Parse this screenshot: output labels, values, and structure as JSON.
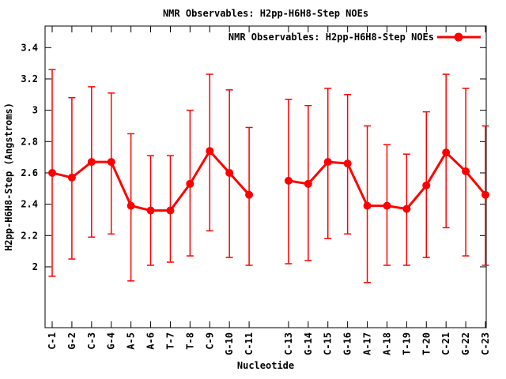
{
  "title": "NMR Observables: H2pp-H6H8-Step NOEs",
  "legend_label": "NMR Observables: H2pp-H6H8-Step NOEs",
  "xlabel": "Nucleotide",
  "ylabel": "H2pp-H6H8-Step (Angstroms)",
  "colors": {
    "series": "#ff0000",
    "axis": "#000000",
    "background": "#ffffff",
    "text": "#000000"
  },
  "chart_data": {
    "type": "line",
    "subtype": "points-with-error-bars",
    "title": "NMR Observables: H2pp-H6H8-Step NOEs",
    "xlabel": "Nucleotide",
    "ylabel": "H2pp-H6H8-Step (Angstroms)",
    "legend_entries": [
      "NMR Observables: H2pp-H6H8-Step NOEs"
    ],
    "legend_position": "top-right-inside",
    "grid": false,
    "ylim": [
      1.61,
      3.54
    ],
    "y_ticks": [
      {
        "value": 2.0,
        "label": "2"
      },
      {
        "value": 2.2,
        "label": "2.2"
      },
      {
        "value": 2.4,
        "label": "2.4"
      },
      {
        "value": 2.6,
        "label": "2.6"
      },
      {
        "value": 2.8,
        "label": "2.8"
      },
      {
        "value": 3.0,
        "label": "3"
      },
      {
        "value": 3.2,
        "label": "3.2"
      },
      {
        "value": 3.4,
        "label": "3.4"
      }
    ],
    "x_slot_range": [
      1,
      23
    ],
    "gap_slots": [
      12
    ],
    "series": [
      {
        "name": "NMR Observables: H2pp-H6H8-Step NOEs",
        "color": "#ff0000",
        "points": [
          {
            "slot": 1,
            "label": "C-1",
            "value": 2.6,
            "err_low": 1.94,
            "err_high": 3.26
          },
          {
            "slot": 2,
            "label": "G-2",
            "value": 2.57,
            "err_low": 2.05,
            "err_high": 3.08
          },
          {
            "slot": 3,
            "label": "C-3",
            "value": 2.67,
            "err_low": 2.19,
            "err_high": 3.15
          },
          {
            "slot": 4,
            "label": "G-4",
            "value": 2.67,
            "err_low": 2.21,
            "err_high": 3.11
          },
          {
            "slot": 5,
            "label": "A-5",
            "value": 2.39,
            "err_low": 1.91,
            "err_high": 2.85
          },
          {
            "slot": 6,
            "label": "A-6",
            "value": 2.36,
            "err_low": 2.01,
            "err_high": 2.71
          },
          {
            "slot": 7,
            "label": "T-7",
            "value": 2.36,
            "err_low": 2.03,
            "err_high": 2.71
          },
          {
            "slot": 8,
            "label": "T-8",
            "value": 2.53,
            "err_low": 2.07,
            "err_high": 3.0
          },
          {
            "slot": 9,
            "label": "C-9",
            "value": 2.74,
            "err_low": 2.23,
            "err_high": 3.23
          },
          {
            "slot": 10,
            "label": "G-10",
            "value": 2.6,
            "err_low": 2.06,
            "err_high": 3.13
          },
          {
            "slot": 11,
            "label": "C-11",
            "value": 2.46,
            "err_low": 2.01,
            "err_high": 2.89
          },
          {
            "slot": 13,
            "label": "C-13",
            "value": 2.55,
            "err_low": 2.02,
            "err_high": 3.07
          },
          {
            "slot": 14,
            "label": "G-14",
            "value": 2.53,
            "err_low": 2.04,
            "err_high": 3.03
          },
          {
            "slot": 15,
            "label": "C-15",
            "value": 2.67,
            "err_low": 2.18,
            "err_high": 3.14
          },
          {
            "slot": 16,
            "label": "G-16",
            "value": 2.66,
            "err_low": 2.21,
            "err_high": 3.1
          },
          {
            "slot": 17,
            "label": "A-17",
            "value": 2.39,
            "err_low": 1.9,
            "err_high": 2.9
          },
          {
            "slot": 18,
            "label": "A-18",
            "value": 2.39,
            "err_low": 2.01,
            "err_high": 2.78
          },
          {
            "slot": 19,
            "label": "T-19",
            "value": 2.37,
            "err_low": 2.01,
            "err_high": 2.72
          },
          {
            "slot": 20,
            "label": "T-20",
            "value": 2.52,
            "err_low": 2.06,
            "err_high": 2.99
          },
          {
            "slot": 21,
            "label": "C-21",
            "value": 2.73,
            "err_low": 2.25,
            "err_high": 3.23
          },
          {
            "slot": 22,
            "label": "G-22",
            "value": 2.61,
            "err_low": 2.07,
            "err_high": 3.14
          },
          {
            "slot": 23,
            "label": "C-23",
            "value": 2.46,
            "err_low": 2.01,
            "err_high": 2.9
          }
        ]
      }
    ]
  }
}
